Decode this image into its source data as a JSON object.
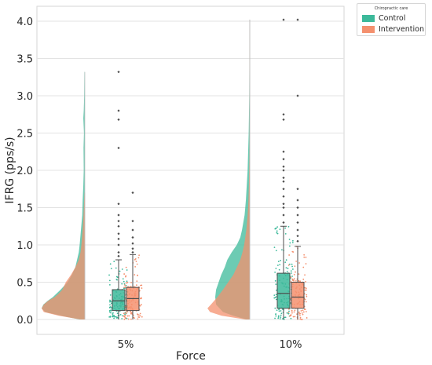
{
  "chart_data": {
    "type": "raincloud",
    "xlabel": "Force",
    "ylabel": "IFRG (pps/s)",
    "categories": [
      "5%",
      "10%"
    ],
    "ylim": [
      -0.2,
      4.2
    ],
    "yticks": [
      "0.0",
      "0.5",
      "1.0",
      "1.5",
      "2.0",
      "2.5",
      "3.0",
      "3.5",
      "4.0"
    ],
    "grid": true,
    "legend": {
      "title": "Chiropractic care",
      "placement": "outside-top-right",
      "entries": [
        "Control",
        "Intervention"
      ]
    },
    "series": [
      {
        "name": "Control",
        "color": "#3cb99a",
        "box": [
          {
            "category": "5%",
            "whisker_low": 0.0,
            "q1": 0.12,
            "median": 0.25,
            "q3": 0.4,
            "whisker_high": 0.8,
            "outliers": [
              0.85,
              0.9,
              1.0,
              1.08,
              1.15,
              1.25,
              1.32,
              1.4,
              1.55,
              2.3,
              2.68,
              2.8,
              3.32
            ]
          },
          {
            "category": "10%",
            "whisker_low": 0.0,
            "q1": 0.15,
            "median": 0.35,
            "q3": 0.62,
            "whisker_high": 1.25,
            "outliers": [
              1.3,
              1.4,
              1.5,
              1.55,
              1.65,
              1.75,
              1.85,
              1.9,
              2.0,
              2.05,
              2.15,
              2.25,
              2.68,
              2.75,
              4.02
            ]
          }
        ],
        "density": [
          {
            "category": "5%",
            "max": 3.32,
            "points": [
              [
                0.0,
                0.12
              ],
              [
                0.05,
                0.55
              ],
              [
                0.1,
                0.92
              ],
              [
                0.15,
                1.0
              ],
              [
                0.2,
                0.96
              ],
              [
                0.25,
                0.86
              ],
              [
                0.3,
                0.74
              ],
              [
                0.4,
                0.56
              ],
              [
                0.5,
                0.4
              ],
              [
                0.6,
                0.3
              ],
              [
                0.7,
                0.22
              ],
              [
                0.8,
                0.18
              ],
              [
                0.9,
                0.14
              ],
              [
                1.0,
                0.12
              ],
              [
                1.2,
                0.09
              ],
              [
                1.4,
                0.06
              ],
              [
                1.6,
                0.05
              ],
              [
                1.8,
                0.035
              ],
              [
                2.0,
                0.025
              ],
              [
                2.3,
                0.03
              ],
              [
                2.5,
                0.02
              ],
              [
                2.7,
                0.035
              ],
              [
                2.8,
                0.025
              ],
              [
                3.0,
                0.015
              ],
              [
                3.32,
                0.01
              ]
            ]
          },
          {
            "category": "10%",
            "max": 4.02,
            "points": [
              [
                0.0,
                0.08
              ],
              [
                0.05,
                0.38
              ],
              [
                0.1,
                0.62
              ],
              [
                0.2,
                0.78
              ],
              [
                0.3,
                0.8
              ],
              [
                0.4,
                0.78
              ],
              [
                0.5,
                0.72
              ],
              [
                0.6,
                0.66
              ],
              [
                0.7,
                0.58
              ],
              [
                0.8,
                0.52
              ],
              [
                0.9,
                0.42
              ],
              [
                1.0,
                0.3
              ],
              [
                1.1,
                0.22
              ],
              [
                1.2,
                0.18
              ],
              [
                1.4,
                0.12
              ],
              [
                1.6,
                0.09
              ],
              [
                1.8,
                0.07
              ],
              [
                2.0,
                0.05
              ],
              [
                2.2,
                0.04
              ],
              [
                2.5,
                0.025
              ],
              [
                2.7,
                0.02
              ],
              [
                3.0,
                0.012
              ],
              [
                3.5,
                0.008
              ],
              [
                4.02,
                0.005
              ]
            ]
          }
        ]
      },
      {
        "name": "Intervention",
        "color": "#f4906e",
        "box": [
          {
            "category": "5%",
            "whisker_low": 0.0,
            "q1": 0.12,
            "median": 0.28,
            "q3": 0.43,
            "whisker_high": 0.87,
            "outliers": [
              0.9,
              0.95,
              1.02,
              1.1,
              1.2,
              1.32,
              1.7
            ]
          },
          {
            "category": "10%",
            "whisker_low": 0.0,
            "q1": 0.15,
            "median": 0.3,
            "q3": 0.5,
            "whisker_high": 0.98,
            "outliers": [
              1.05,
              1.12,
              1.2,
              1.3,
              1.4,
              1.5,
              1.6,
              1.75,
              3.0,
              4.02
            ]
          }
        ],
        "density": [
          {
            "category": "5%",
            "max": 1.7,
            "points": [
              [
                0.0,
                0.1
              ],
              [
                0.05,
                0.6
              ],
              [
                0.1,
                0.95
              ],
              [
                0.15,
                1.0
              ],
              [
                0.2,
                0.95
              ],
              [
                0.25,
                0.85
              ],
              [
                0.3,
                0.7
              ],
              [
                0.35,
                0.6
              ],
              [
                0.4,
                0.52
              ],
              [
                0.5,
                0.44
              ],
              [
                0.6,
                0.32
              ],
              [
                0.7,
                0.22
              ],
              [
                0.8,
                0.14
              ],
              [
                0.9,
                0.1
              ],
              [
                1.0,
                0.08
              ],
              [
                1.2,
                0.05
              ],
              [
                1.4,
                0.03
              ],
              [
                1.7,
                0.01
              ]
            ]
          },
          {
            "category": "10%",
            "max": 4.02,
            "points": [
              [
                0.0,
                0.1
              ],
              [
                0.05,
                0.65
              ],
              [
                0.1,
                0.92
              ],
              [
                0.15,
                0.98
              ],
              [
                0.2,
                0.9
              ],
              [
                0.3,
                0.75
              ],
              [
                0.4,
                0.62
              ],
              [
                0.5,
                0.5
              ],
              [
                0.6,
                0.38
              ],
              [
                0.7,
                0.3
              ],
              [
                0.8,
                0.22
              ],
              [
                0.9,
                0.17
              ],
              [
                1.0,
                0.13
              ],
              [
                1.2,
                0.08
              ],
              [
                1.4,
                0.05
              ],
              [
                1.6,
                0.03
              ],
              [
                1.8,
                0.02
              ],
              [
                2.2,
                0.01
              ],
              [
                3.0,
                0.004
              ],
              [
                4.02,
                0.002
              ]
            ]
          }
        ]
      }
    ]
  }
}
